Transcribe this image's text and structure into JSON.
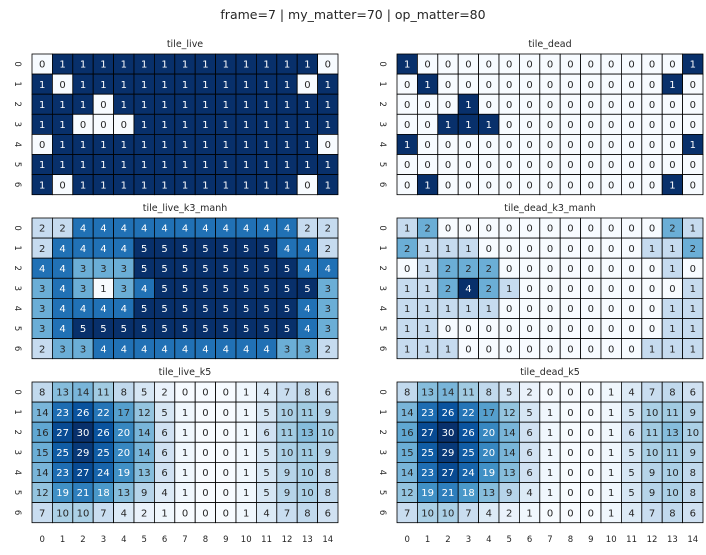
{
  "figure_title": "frame=7 | my_matter=70 | op_matter=80",
  "colormap": {
    "name": "Blues",
    "stops": [
      "#f7fbff",
      "#deebf7",
      "#c6dbef",
      "#9ecae1",
      "#6baed6",
      "#4292c6",
      "#2171b5",
      "#08519c",
      "#08306b"
    ],
    "text_dark": "#262626",
    "text_light": "#ffffff",
    "cell_border": "#000000"
  },
  "x_tick_labels": [
    "0",
    "1",
    "2",
    "3",
    "4",
    "5",
    "6",
    "7",
    "8",
    "9",
    "10",
    "11",
    "12",
    "13",
    "14"
  ],
  "y_tick_labels": [
    "0",
    "1",
    "2",
    "3",
    "4",
    "5",
    "6"
  ],
  "chart_data": [
    {
      "type": "heatmap",
      "title": "tile_live",
      "vmin": 0,
      "vmax": 1,
      "values": [
        [
          0,
          1,
          1,
          1,
          1,
          1,
          1,
          1,
          1,
          1,
          1,
          1,
          1,
          1,
          0
        ],
        [
          1,
          0,
          1,
          1,
          1,
          1,
          1,
          1,
          1,
          1,
          1,
          1,
          1,
          0,
          1
        ],
        [
          1,
          1,
          1,
          0,
          1,
          1,
          1,
          1,
          1,
          1,
          1,
          1,
          1,
          1,
          1
        ],
        [
          1,
          1,
          0,
          0,
          0,
          1,
          1,
          1,
          1,
          1,
          1,
          1,
          1,
          1,
          1
        ],
        [
          0,
          1,
          1,
          1,
          1,
          1,
          1,
          1,
          1,
          1,
          1,
          1,
          1,
          1,
          0
        ],
        [
          1,
          1,
          1,
          1,
          1,
          1,
          1,
          1,
          1,
          1,
          1,
          1,
          1,
          1,
          1
        ],
        [
          1,
          0,
          1,
          1,
          1,
          1,
          1,
          1,
          1,
          1,
          1,
          1,
          1,
          0,
          1
        ]
      ]
    },
    {
      "type": "heatmap",
      "title": "tile_dead",
      "vmin": 0,
      "vmax": 1,
      "values": [
        [
          1,
          0,
          0,
          0,
          0,
          0,
          0,
          0,
          0,
          0,
          0,
          0,
          0,
          0,
          1
        ],
        [
          0,
          1,
          0,
          0,
          0,
          0,
          0,
          0,
          0,
          0,
          0,
          0,
          0,
          1,
          0
        ],
        [
          0,
          0,
          0,
          1,
          0,
          0,
          0,
          0,
          0,
          0,
          0,
          0,
          0,
          0,
          0
        ],
        [
          0,
          0,
          1,
          1,
          1,
          0,
          0,
          0,
          0,
          0,
          0,
          0,
          0,
          0,
          0
        ],
        [
          1,
          0,
          0,
          0,
          0,
          0,
          0,
          0,
          0,
          0,
          0,
          0,
          0,
          0,
          1
        ],
        [
          0,
          0,
          0,
          0,
          0,
          0,
          0,
          0,
          0,
          0,
          0,
          0,
          0,
          0,
          0
        ],
        [
          0,
          1,
          0,
          0,
          0,
          0,
          0,
          0,
          0,
          0,
          0,
          0,
          0,
          1,
          0
        ]
      ]
    },
    {
      "type": "heatmap",
      "title": "tile_live_k3_manh",
      "vmin": 1,
      "vmax": 5,
      "values": [
        [
          2,
          2,
          4,
          4,
          4,
          4,
          4,
          4,
          4,
          4,
          4,
          4,
          4,
          2,
          2
        ],
        [
          2,
          4,
          4,
          4,
          4,
          5,
          5,
          5,
          5,
          5,
          5,
          5,
          4,
          4,
          2
        ],
        [
          4,
          4,
          3,
          3,
          3,
          5,
          5,
          5,
          5,
          5,
          5,
          5,
          5,
          4,
          4
        ],
        [
          3,
          4,
          3,
          1,
          3,
          4,
          5,
          5,
          5,
          5,
          5,
          5,
          5,
          5,
          3
        ],
        [
          3,
          4,
          4,
          4,
          4,
          5,
          5,
          5,
          5,
          5,
          5,
          5,
          5,
          4,
          3
        ],
        [
          3,
          4,
          5,
          5,
          5,
          5,
          5,
          5,
          5,
          5,
          5,
          5,
          5,
          4,
          3
        ],
        [
          2,
          3,
          3,
          4,
          4,
          4,
          4,
          4,
          4,
          4,
          4,
          4,
          3,
          3,
          2
        ]
      ]
    },
    {
      "type": "heatmap",
      "title": "tile_dead_k3_manh",
      "vmin": 0,
      "vmax": 4,
      "values": [
        [
          1,
          2,
          0,
          0,
          0,
          0,
          0,
          0,
          0,
          0,
          0,
          0,
          0,
          2,
          1
        ],
        [
          2,
          1,
          1,
          1,
          0,
          0,
          0,
          0,
          0,
          0,
          0,
          0,
          1,
          1,
          2
        ],
        [
          0,
          1,
          2,
          2,
          2,
          0,
          0,
          0,
          0,
          0,
          0,
          0,
          0,
          1,
          0
        ],
        [
          1,
          1,
          2,
          4,
          2,
          1,
          0,
          0,
          0,
          0,
          0,
          0,
          0,
          0,
          1
        ],
        [
          1,
          1,
          1,
          1,
          1,
          0,
          0,
          0,
          0,
          0,
          0,
          0,
          0,
          1,
          1
        ],
        [
          1,
          1,
          0,
          0,
          0,
          0,
          0,
          0,
          0,
          0,
          0,
          0,
          0,
          1,
          1
        ],
        [
          1,
          1,
          1,
          0,
          0,
          0,
          0,
          0,
          0,
          0,
          0,
          0,
          1,
          1,
          1
        ]
      ]
    },
    {
      "type": "heatmap",
      "title": "tile_live_k5",
      "vmin": 0,
      "vmax": 30,
      "values": [
        [
          8,
          13,
          14,
          11,
          8,
          5,
          2,
          0,
          0,
          0,
          1,
          4,
          7,
          8,
          6
        ],
        [
          14,
          23,
          26,
          22,
          17,
          12,
          5,
          1,
          0,
          0,
          1,
          5,
          10,
          11,
          9
        ],
        [
          16,
          27,
          30,
          26,
          20,
          14,
          6,
          1,
          0,
          0,
          1,
          6,
          11,
          13,
          10
        ],
        [
          15,
          25,
          29,
          25,
          20,
          14,
          6,
          1,
          0,
          0,
          1,
          5,
          10,
          11,
          9
        ],
        [
          14,
          23,
          27,
          24,
          19,
          13,
          6,
          1,
          0,
          0,
          1,
          5,
          9,
          10,
          8
        ],
        [
          12,
          19,
          21,
          18,
          13,
          9,
          4,
          1,
          0,
          0,
          1,
          5,
          9,
          10,
          8
        ],
        [
          7,
          10,
          10,
          7,
          4,
          2,
          1,
          0,
          0,
          0,
          1,
          4,
          7,
          8,
          6
        ]
      ]
    },
    {
      "type": "heatmap",
      "title": "tile_dead_k5",
      "vmin": 0,
      "vmax": 30,
      "values": [
        [
          8,
          13,
          14,
          11,
          8,
          5,
          2,
          0,
          0,
          0,
          1,
          4,
          7,
          8,
          6
        ],
        [
          14,
          23,
          26,
          22,
          17,
          12,
          5,
          1,
          0,
          0,
          1,
          5,
          10,
          11,
          9
        ],
        [
          16,
          27,
          30,
          26,
          20,
          14,
          6,
          1,
          0,
          0,
          1,
          6,
          11,
          13,
          10
        ],
        [
          15,
          25,
          29,
          25,
          20,
          14,
          6,
          1,
          0,
          0,
          1,
          5,
          10,
          11,
          9
        ],
        [
          14,
          23,
          27,
          24,
          19,
          13,
          6,
          1,
          0,
          0,
          1,
          5,
          9,
          10,
          8
        ],
        [
          12,
          19,
          21,
          18,
          13,
          9,
          4,
          1,
          0,
          0,
          1,
          5,
          9,
          10,
          8
        ],
        [
          7,
          10,
          10,
          7,
          4,
          2,
          1,
          0,
          0,
          0,
          1,
          4,
          7,
          8,
          6
        ]
      ]
    }
  ]
}
